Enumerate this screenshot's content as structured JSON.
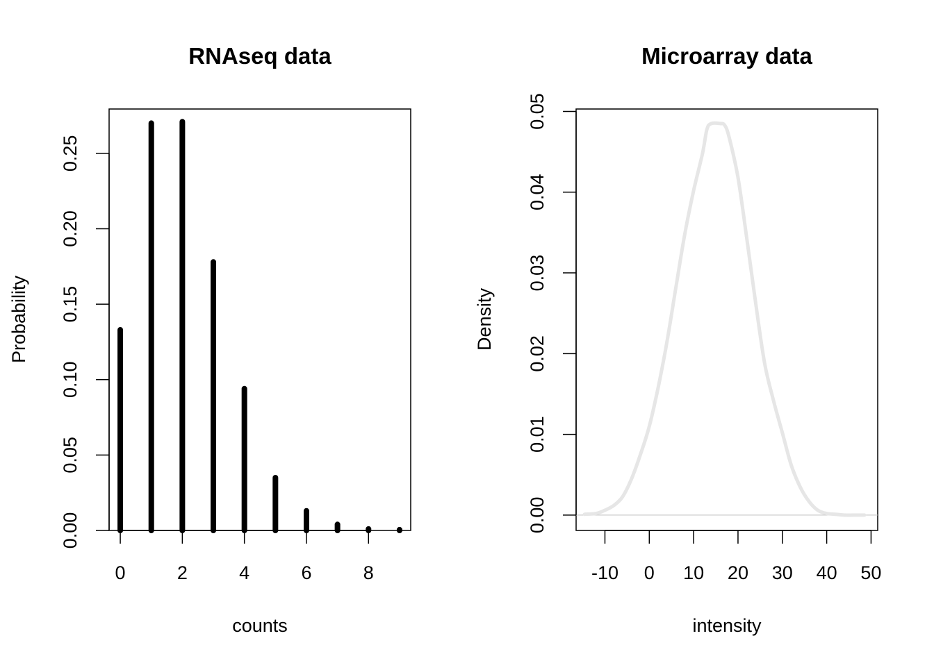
{
  "chart_data": [
    {
      "type": "bar",
      "title": "RNAseq data",
      "xlabel": "counts",
      "ylabel": "Probability",
      "xlim": [
        -0.36,
        9.36
      ],
      "ylim": [
        0,
        0.2794
      ],
      "categories": [
        0,
        1,
        2,
        3,
        4,
        5,
        6,
        7,
        8,
        9
      ],
      "values": [
        0.133,
        0.27,
        0.271,
        0.178,
        0.094,
        0.035,
        0.013,
        0.004,
        0.001,
        0.0005
      ],
      "x_ticks": [
        0,
        2,
        4,
        6,
        8
      ],
      "x_tick_labels": [
        "0",
        "2",
        "4",
        "6",
        "8"
      ],
      "y_ticks": [
        0,
        0.05,
        0.1,
        0.15,
        0.2,
        0.25
      ],
      "y_tick_labels": [
        "0.00",
        "0.05",
        "0.10",
        "0.15",
        "0.20",
        "0.25"
      ],
      "bar_color": "#000000",
      "grid": false
    },
    {
      "type": "line",
      "title": "Microarray data",
      "xlabel": "intensity",
      "ylabel": "Density",
      "xlim": [
        -16.5,
        51.5
      ],
      "ylim": [
        -0.0019,
        0.0503
      ],
      "x": [
        -14.6,
        -12,
        -10,
        -8,
        -6,
        -4,
        -2,
        0,
        2,
        4,
        6,
        8,
        10,
        12,
        13,
        14,
        16,
        17,
        18,
        20,
        22,
        24,
        26,
        28,
        30,
        32,
        34,
        36,
        38,
        40,
        42,
        44,
        46,
        48.5
      ],
      "y": [
        0.0001,
        0.0002,
        0.0006,
        0.0012,
        0.0023,
        0.0045,
        0.0075,
        0.011,
        0.0158,
        0.0215,
        0.0282,
        0.0348,
        0.0402,
        0.0448,
        0.0478,
        0.0485,
        0.0485,
        0.0483,
        0.0468,
        0.0418,
        0.0342,
        0.0262,
        0.0188,
        0.0142,
        0.0102,
        0.0062,
        0.0035,
        0.0017,
        0.0006,
        0.0002,
        0.0001,
        0.0,
        0.0,
        0.0
      ],
      "x_ticks": [
        -10,
        0,
        10,
        20,
        30,
        40,
        50
      ],
      "x_tick_labels": [
        "-10",
        "0",
        "10",
        "20",
        "30",
        "40",
        "50"
      ],
      "y_ticks": [
        0,
        0.01,
        0.02,
        0.03,
        0.04,
        0.05
      ],
      "y_tick_labels": [
        "0.00",
        "0.01",
        "0.02",
        "0.03",
        "0.04",
        "0.05"
      ],
      "baseline": 0,
      "line_color": "#e6e6e6",
      "baseline_color": "#bebebe",
      "grid": false
    }
  ]
}
